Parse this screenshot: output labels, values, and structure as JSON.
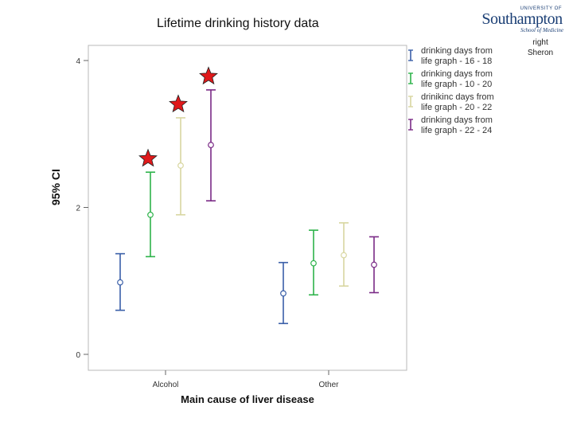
{
  "slide": {
    "title": "Lifetime drinking history data",
    "credit_line1": "right",
    "credit_line2": "Sheron"
  },
  "logo": {
    "university_line": "UNIVERSITY OF",
    "name": "Southampton",
    "school": "School of Medicine"
  },
  "colors": {
    "series": [
      "#3a5fa8",
      "#2db34a",
      "#d8d6a0",
      "#7a2a86"
    ],
    "star": "#e0191b"
  },
  "chart_data": {
    "type": "errorbar",
    "title": "Lifetime drinking history data",
    "xlabel": "Main cause of liver disease",
    "ylabel": "95% CI",
    "categories": [
      "Alcohol",
      "Other"
    ],
    "ylim": [
      0,
      4
    ],
    "yticks": [
      0,
      2,
      4
    ],
    "legend_position": "top-right",
    "series": [
      {
        "name": "drinking days from life graph - 16 - 18",
        "mean": [
          0.98,
          0.83
        ],
        "lower": [
          0.6,
          0.42
        ],
        "upper": [
          1.37,
          1.25
        ]
      },
      {
        "name": "drinking days from life graph - 10 - 20",
        "mean": [
          1.9,
          1.24
        ],
        "lower": [
          1.33,
          0.81
        ],
        "upper": [
          2.48,
          1.69
        ]
      },
      {
        "name": "drinikinc days from life graph - 20 - 22",
        "mean": [
          2.57,
          1.35
        ],
        "lower": [
          1.9,
          0.93
        ],
        "upper": [
          3.22,
          1.79
        ]
      },
      {
        "name": "drinking days from life graph - 22 - 24",
        "mean": [
          2.85,
          1.22
        ],
        "lower": [
          2.09,
          0.84
        ],
        "upper": [
          3.6,
          1.6
        ]
      }
    ],
    "annotations": [
      {
        "type": "star",
        "category": "Alcohol",
        "series_index": 1
      },
      {
        "type": "star",
        "category": "Alcohol",
        "series_index": 2
      },
      {
        "type": "star",
        "category": "Alcohol",
        "series_index": 3
      }
    ]
  }
}
